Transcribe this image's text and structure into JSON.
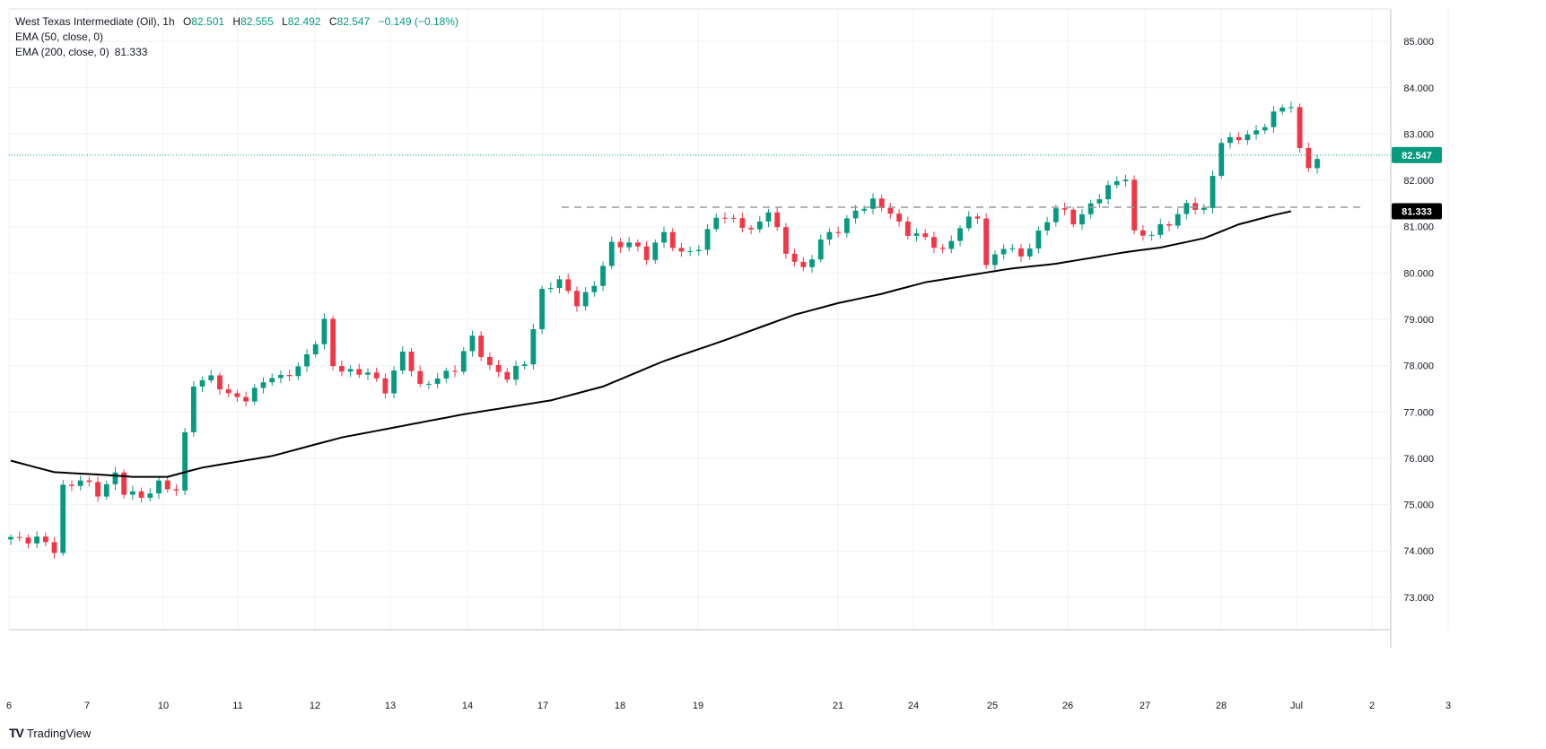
{
  "header": {
    "symbol": "West Texas Intermediate (Oil)",
    "interval": "1h",
    "o_label": "O",
    "o_value": "82.501",
    "h_label": "H",
    "h_value": "82.555",
    "l_label": "L",
    "l_value": "82.492",
    "c_label": "C",
    "c_value": "82.547",
    "change": "−0.149 (−0.18%)",
    "ema50_label": "EMA (50, close, 0)",
    "ema200_label": "EMA (200, close, 0)",
    "ema200_value": "81.333"
  },
  "brand": {
    "name": "TradingView",
    "logo": "TV"
  },
  "colors": {
    "up": "#089981",
    "down": "#f23645",
    "ema": "#000000",
    "grid": "#eef0f3",
    "text": "#131722",
    "resistance": "#9a9a9a"
  },
  "chart_data": {
    "type": "candlestick",
    "y_ticks": [
      "73.000",
      "74.000",
      "75.000",
      "76.000",
      "77.000",
      "78.000",
      "79.000",
      "80.000",
      "81.000",
      "82.000",
      "83.000",
      "84.000",
      "85.000"
    ],
    "ylim": [
      72.3,
      85.7
    ],
    "x_ticks": [
      "6",
      "7",
      "10",
      "11",
      "12",
      "13",
      "14",
      "17",
      "18",
      "19",
      "21",
      "24",
      "25",
      "26",
      "27",
      "28",
      "Jul",
      "2",
      "3"
    ],
    "last_price": 82.547,
    "last_price_label": "82.547",
    "ema200_badge": "81.333",
    "resistance_level": 81.42,
    "price_anchors": [
      [
        0,
        74.3
      ],
      [
        3,
        74.25
      ],
      [
        5,
        74.0
      ],
      [
        6,
        75.4
      ],
      [
        8,
        75.55
      ],
      [
        10,
        75.2
      ],
      [
        12,
        75.7
      ],
      [
        13,
        75.3
      ],
      [
        15,
        75.1
      ],
      [
        17,
        75.5
      ],
      [
        19,
        75.3
      ],
      [
        21,
        77.6
      ],
      [
        23,
        77.8
      ],
      [
        25,
        77.3
      ],
      [
        27,
        77.3
      ],
      [
        29,
        77.7
      ],
      [
        31,
        77.7
      ],
      [
        33,
        78.0
      ],
      [
        35,
        78.5
      ],
      [
        36,
        78.9
      ],
      [
        37,
        78.0
      ],
      [
        39,
        77.9
      ],
      [
        41,
        77.8
      ],
      [
        43,
        77.5
      ],
      [
        45,
        78.3
      ],
      [
        47,
        77.5
      ],
      [
        49,
        77.8
      ],
      [
        51,
        77.9
      ],
      [
        53,
        78.6
      ],
      [
        55,
        78.0
      ],
      [
        57,
        77.7
      ],
      [
        59,
        78.1
      ],
      [
        61,
        79.6
      ],
      [
        63,
        79.8
      ],
      [
        65,
        79.4
      ],
      [
        67,
        79.7
      ],
      [
        69,
        80.6
      ],
      [
        71,
        80.7
      ],
      [
        73,
        80.3
      ],
      [
        75,
        80.9
      ],
      [
        77,
        80.4
      ],
      [
        79,
        80.5
      ],
      [
        81,
        81.3
      ],
      [
        83,
        81.1
      ],
      [
        85,
        80.9
      ],
      [
        87,
        81.4
      ],
      [
        89,
        80.4
      ],
      [
        91,
        80.1
      ],
      [
        93,
        80.7
      ],
      [
        95,
        80.9
      ],
      [
        97,
        81.4
      ],
      [
        99,
        81.5
      ],
      [
        101,
        81.3
      ],
      [
        103,
        80.9
      ],
      [
        105,
        80.7
      ],
      [
        107,
        80.5
      ],
      [
        109,
        81.0
      ],
      [
        111,
        81.2
      ],
      [
        112,
        80.2
      ],
      [
        114,
        80.6
      ],
      [
        116,
        80.3
      ],
      [
        118,
        80.9
      ],
      [
        120,
        81.4
      ],
      [
        122,
        81.1
      ],
      [
        124,
        81.5
      ],
      [
        126,
        81.8
      ],
      [
        128,
        82.1
      ],
      [
        129,
        80.9
      ],
      [
        131,
        80.8
      ],
      [
        133,
        81.1
      ],
      [
        135,
        81.5
      ],
      [
        137,
        81.3
      ],
      [
        139,
        82.9
      ],
      [
        141,
        82.9
      ],
      [
        143,
        83.0
      ],
      [
        145,
        83.5
      ],
      [
        147,
        83.6
      ],
      [
        148,
        82.6
      ],
      [
        149,
        82.3
      ],
      [
        150,
        82.55
      ]
    ],
    "ema200_anchors": [
      [
        0,
        75.95
      ],
      [
        5,
        75.7
      ],
      [
        10,
        75.65
      ],
      [
        14,
        75.6
      ],
      [
        18,
        75.6
      ],
      [
        22,
        75.8
      ],
      [
        30,
        76.05
      ],
      [
        38,
        76.45
      ],
      [
        45,
        76.7
      ],
      [
        52,
        76.95
      ],
      [
        57,
        77.1
      ],
      [
        62,
        77.25
      ],
      [
        68,
        77.55
      ],
      [
        75,
        78.1
      ],
      [
        82,
        78.55
      ],
      [
        90,
        79.1
      ],
      [
        95,
        79.35
      ],
      [
        100,
        79.55
      ],
      [
        105,
        79.8
      ],
      [
        110,
        79.95
      ],
      [
        115,
        80.1
      ],
      [
        120,
        80.2
      ],
      [
        128,
        80.45
      ],
      [
        132,
        80.55
      ],
      [
        137,
        80.75
      ],
      [
        141,
        81.05
      ],
      [
        145,
        81.25
      ],
      [
        147,
        81.333
      ]
    ]
  }
}
